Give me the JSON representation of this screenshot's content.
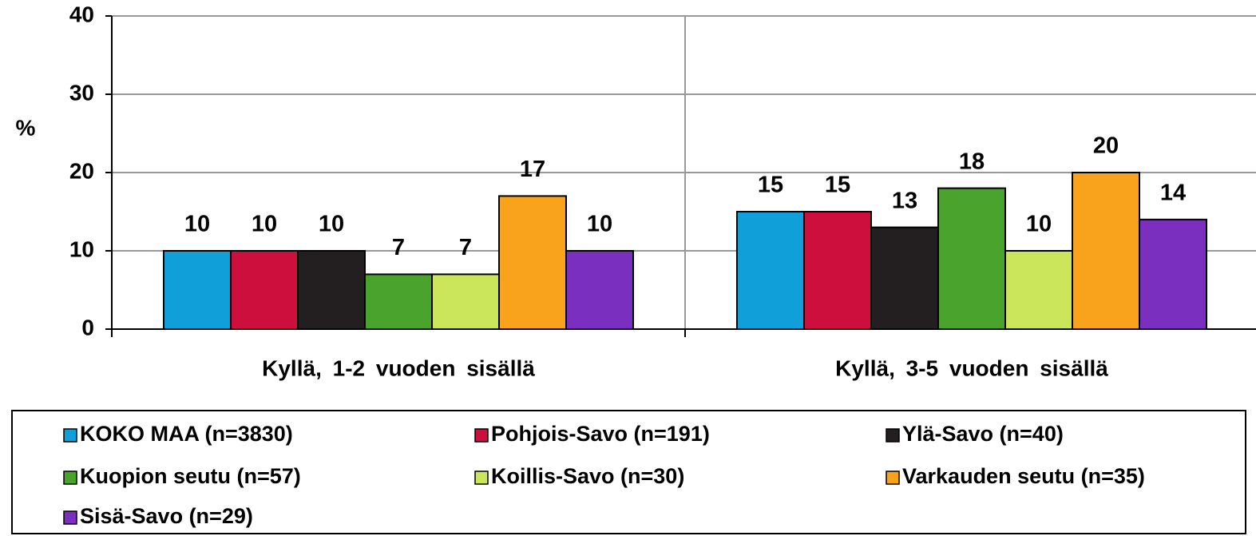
{
  "chart_data": {
    "type": "bar",
    "y_label": "%",
    "categories": [
      "Kyllä, 1-2 vuoden sisällä",
      "Kyllä, 3-5 vuoden sisällä"
    ],
    "series": [
      {
        "name": "KOKO MAA  (n=3830)",
        "color": "#119fda",
        "values": [
          10,
          15
        ]
      },
      {
        "name": "Pohjois-Savo (n=191)",
        "color": "#cc0f3c",
        "values": [
          10,
          15
        ]
      },
      {
        "name": "Ylä-Savo (n=40)",
        "color": "#231f20",
        "values": [
          10,
          13
        ]
      },
      {
        "name": "Kuopion seutu (n=57)",
        "color": "#4aa32d",
        "values": [
          7,
          18
        ]
      },
      {
        "name": "Koillis-Savo (n=30)",
        "color": "#cbe65a",
        "values": [
          7,
          10
        ]
      },
      {
        "name": "Varkauden seutu (n=35)",
        "color": "#f9a21c",
        "values": [
          17,
          20
        ]
      },
      {
        "name": "Sisä-Savo (n=29)",
        "color": "#7a2fbf",
        "values": [
          10,
          14
        ]
      }
    ],
    "ylim": [
      0,
      40
    ],
    "yticks": [
      0,
      10,
      20,
      30,
      40
    ],
    "grid": true,
    "legend": "bottom"
  }
}
